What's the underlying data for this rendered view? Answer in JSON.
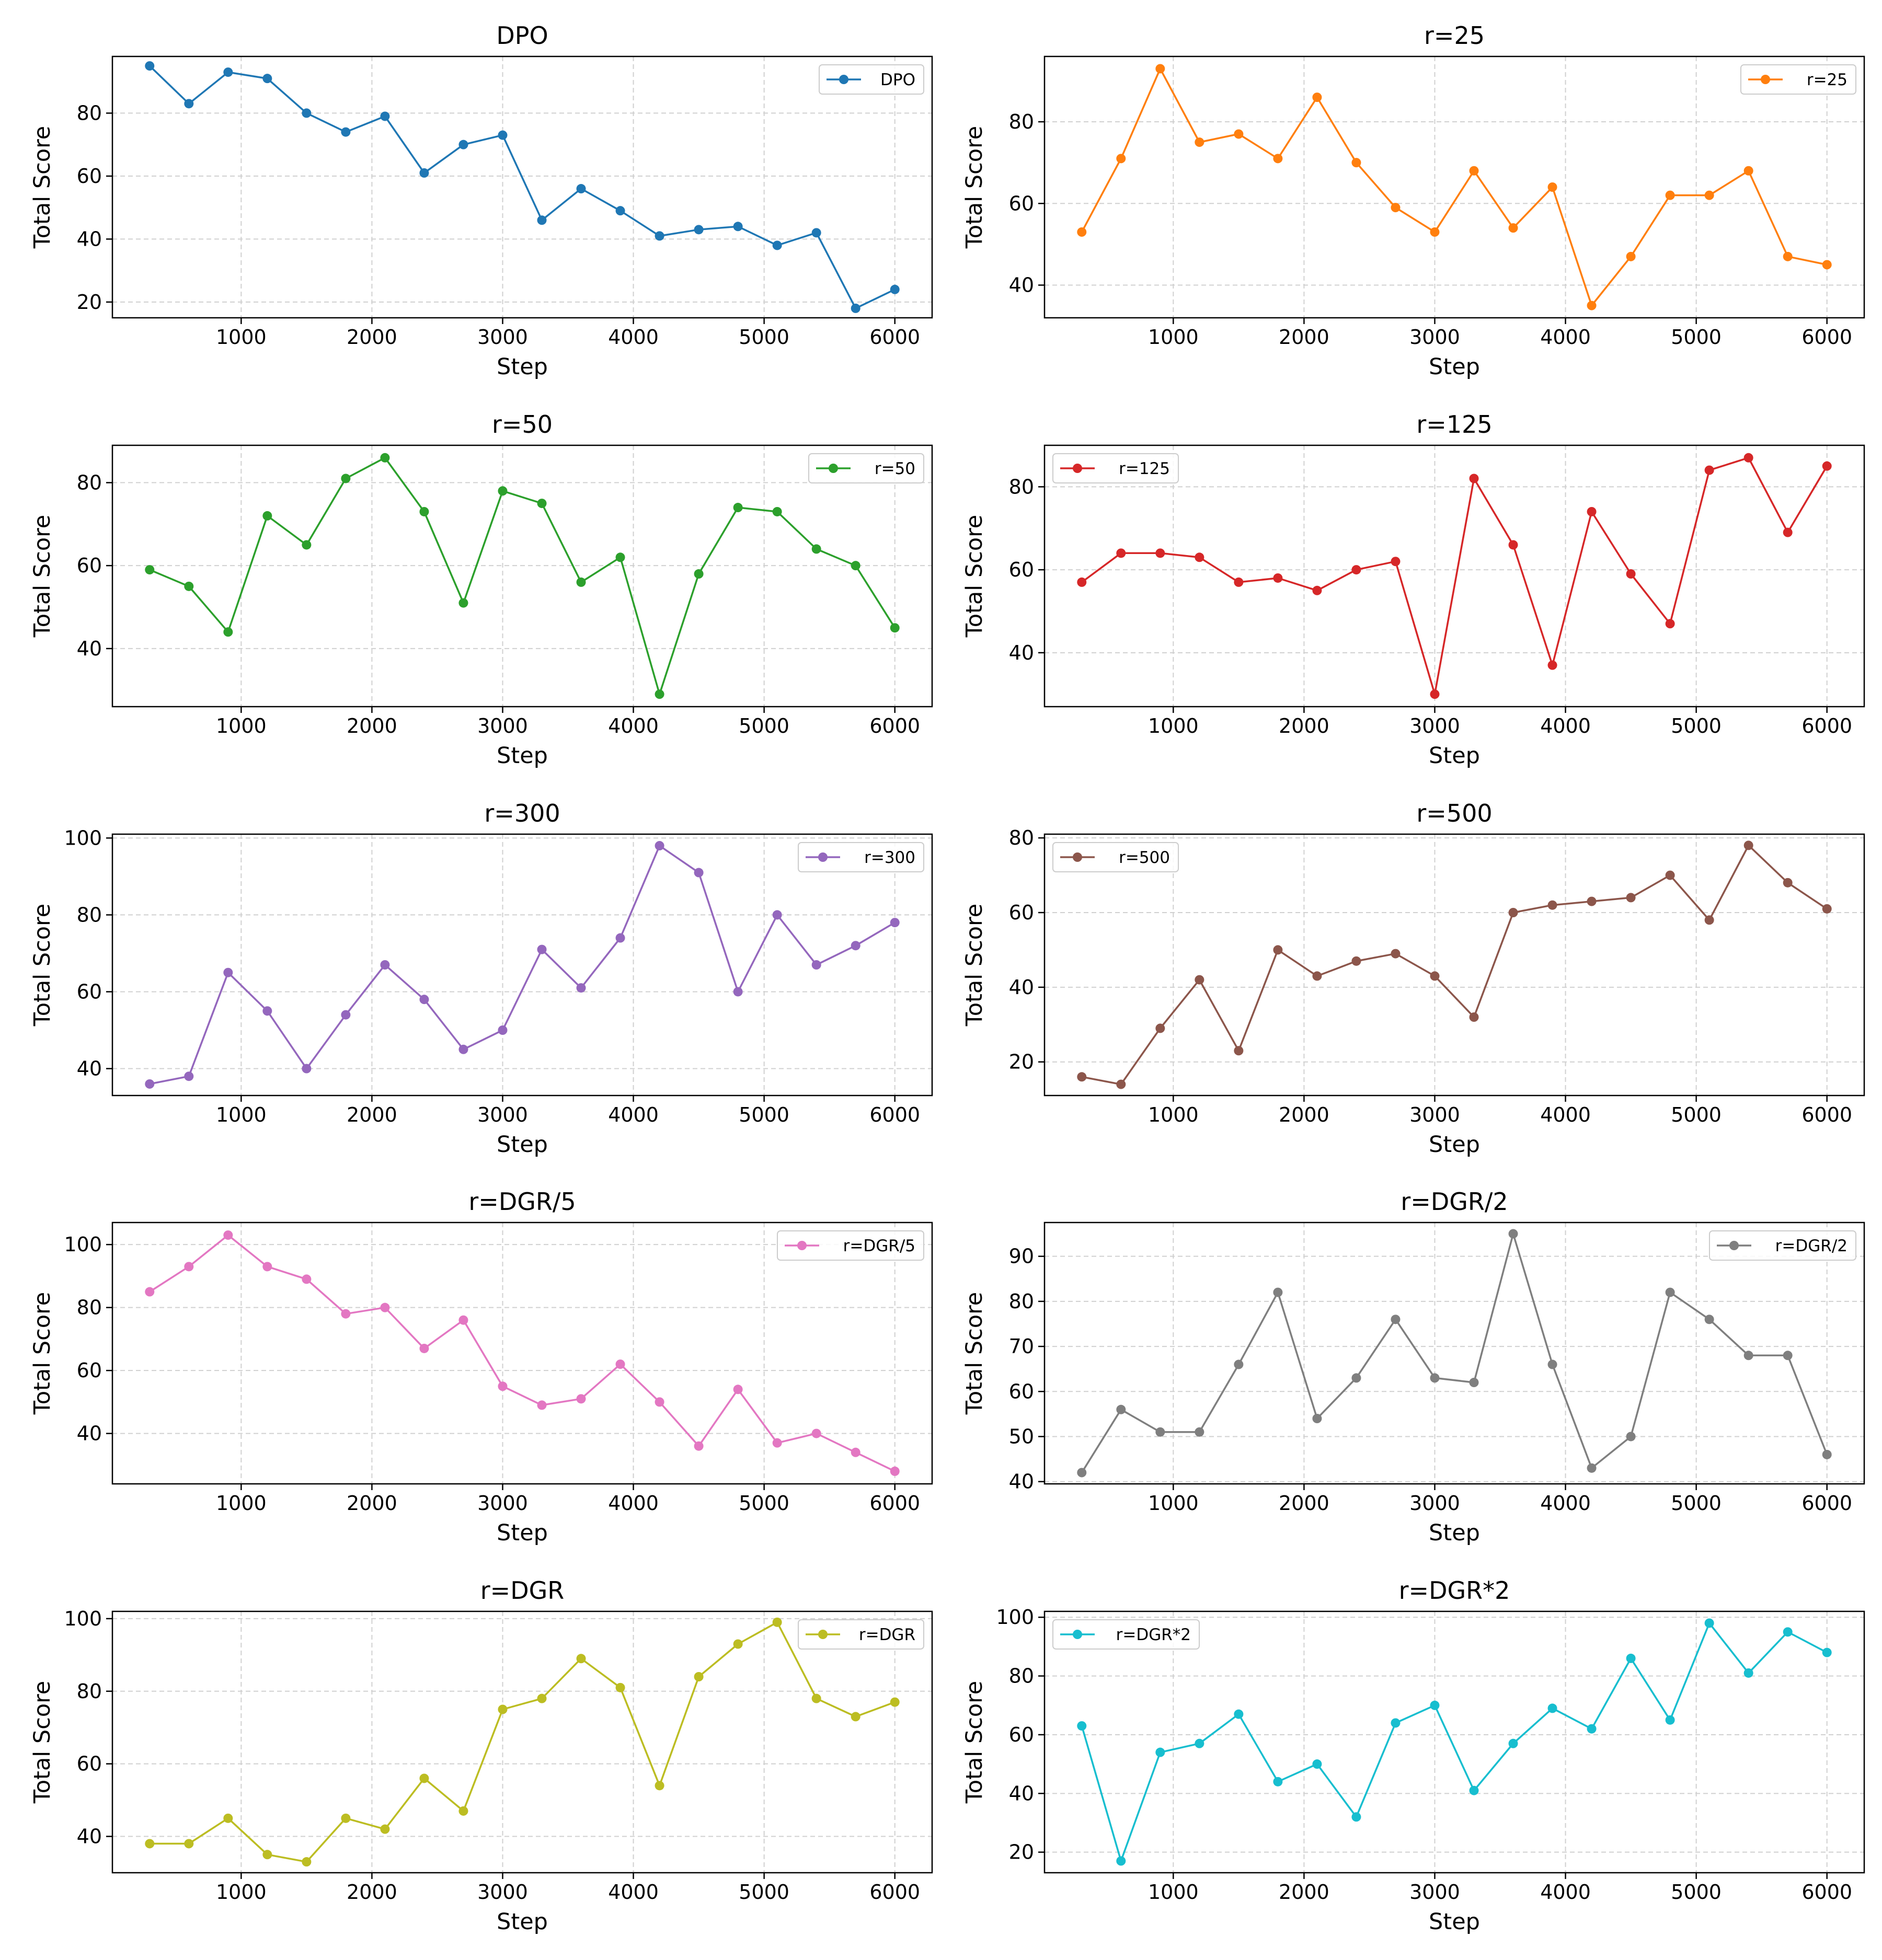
{
  "chart_data": [
    {
      "type": "line",
      "title": "DPO",
      "xlabel": "Step",
      "ylabel": "Total Score",
      "color": "#1f77b4",
      "legend": "DPO",
      "legend_pos": "top-right",
      "x": [
        300,
        600,
        900,
        1200,
        1500,
        1800,
        2100,
        2400,
        2700,
        3000,
        3300,
        3600,
        3900,
        4200,
        4500,
        4800,
        5100,
        5400,
        5700,
        6000
      ],
      "values": [
        95,
        83,
        93,
        91,
        80,
        74,
        79,
        61,
        70,
        73,
        46,
        56,
        49,
        41,
        43,
        44,
        38,
        42,
        18,
        24
      ],
      "ylim": [
        15,
        98
      ],
      "yticks": [
        20,
        40,
        60,
        80
      ],
      "xticks": [
        1000,
        2000,
        3000,
        4000,
        5000,
        6000
      ]
    },
    {
      "type": "line",
      "title": "r=25",
      "xlabel": "Step",
      "ylabel": "Total Score",
      "color": "#ff7f0e",
      "legend": "r=25",
      "legend_pos": "top-right",
      "x": [
        300,
        600,
        900,
        1200,
        1500,
        1800,
        2100,
        2400,
        2700,
        3000,
        3300,
        3600,
        3900,
        4200,
        4500,
        4800,
        5100,
        5400,
        5700,
        6000
      ],
      "values": [
        53,
        71,
        93,
        75,
        77,
        71,
        86,
        70,
        59,
        53,
        68,
        54,
        64,
        35,
        47,
        62,
        62,
        68,
        47,
        45
      ],
      "ylim": [
        32,
        96
      ],
      "yticks": [
        40,
        60,
        80
      ],
      "xticks": [
        1000,
        2000,
        3000,
        4000,
        5000,
        6000
      ]
    },
    {
      "type": "line",
      "title": "r=50",
      "xlabel": "Step",
      "ylabel": "Total Score",
      "color": "#2ca02c",
      "legend": "r=50",
      "legend_pos": "top-right",
      "x": [
        300,
        600,
        900,
        1200,
        1500,
        1800,
        2100,
        2400,
        2700,
        3000,
        3300,
        3600,
        3900,
        4200,
        4500,
        4800,
        5100,
        5400,
        5700,
        6000
      ],
      "values": [
        59,
        55,
        44,
        72,
        65,
        81,
        86,
        73,
        51,
        78,
        75,
        56,
        62,
        29,
        58,
        74,
        73,
        64,
        60,
        45
      ],
      "ylim": [
        26,
        89
      ],
      "yticks": [
        40,
        60,
        80
      ],
      "xticks": [
        1000,
        2000,
        3000,
        4000,
        5000,
        6000
      ]
    },
    {
      "type": "line",
      "title": "r=125",
      "xlabel": "Step",
      "ylabel": "Total Score",
      "color": "#d62728",
      "legend": "r=125",
      "legend_pos": "top-left",
      "x": [
        300,
        600,
        900,
        1200,
        1500,
        1800,
        2100,
        2400,
        2700,
        3000,
        3300,
        3600,
        3900,
        4200,
        4500,
        4800,
        5100,
        5400,
        5700,
        6000
      ],
      "values": [
        57,
        64,
        64,
        63,
        57,
        58,
        55,
        60,
        62,
        30,
        82,
        66,
        37,
        74,
        59,
        47,
        84,
        87,
        69,
        85
      ],
      "ylim": [
        27,
        90
      ],
      "yticks": [
        40,
        60,
        80
      ],
      "xticks": [
        1000,
        2000,
        3000,
        4000,
        5000,
        6000
      ]
    },
    {
      "type": "line",
      "title": "r=300",
      "xlabel": "Step",
      "ylabel": "Total Score",
      "color": "#9467bd",
      "legend": "r=300",
      "legend_pos": "top-right",
      "x": [
        300,
        600,
        900,
        1200,
        1500,
        1800,
        2100,
        2400,
        2700,
        3000,
        3300,
        3600,
        3900,
        4200,
        4500,
        4800,
        5100,
        5400,
        5700,
        6000
      ],
      "values": [
        36,
        38,
        65,
        55,
        40,
        54,
        67,
        58,
        45,
        50,
        71,
        61,
        74,
        98,
        91,
        60,
        80,
        67,
        72,
        78
      ],
      "ylim": [
        33,
        101
      ],
      "yticks": [
        40,
        60,
        80,
        100
      ],
      "xticks": [
        1000,
        2000,
        3000,
        4000,
        5000,
        6000
      ]
    },
    {
      "type": "line",
      "title": "r=500",
      "xlabel": "Step",
      "ylabel": "Total Score",
      "color": "#8c564b",
      "legend": "r=500",
      "legend_pos": "top-left",
      "x": [
        300,
        600,
        900,
        1200,
        1500,
        1800,
        2100,
        2400,
        2700,
        3000,
        3300,
        3600,
        3900,
        4200,
        4500,
        4800,
        5100,
        5400,
        5700,
        6000
      ],
      "values": [
        16,
        14,
        29,
        42,
        23,
        50,
        43,
        47,
        49,
        43,
        32,
        60,
        62,
        63,
        64,
        70,
        58,
        78,
        68,
        61
      ],
      "ylim": [
        11,
        81
      ],
      "yticks": [
        20,
        40,
        60,
        80
      ],
      "xticks": [
        1000,
        2000,
        3000,
        4000,
        5000,
        6000
      ]
    },
    {
      "type": "line",
      "title": "r=DGR/5",
      "xlabel": "Step",
      "ylabel": "Total Score",
      "color": "#e377c2",
      "legend": "r=DGR/5",
      "legend_pos": "top-right",
      "x": [
        300,
        600,
        900,
        1200,
        1500,
        1800,
        2100,
        2400,
        2700,
        3000,
        3300,
        3600,
        3900,
        4200,
        4500,
        4800,
        5100,
        5400,
        5700,
        6000
      ],
      "values": [
        85,
        93,
        103,
        93,
        89,
        78,
        80,
        67,
        76,
        55,
        49,
        51,
        62,
        50,
        36,
        54,
        37,
        40,
        34,
        28
      ],
      "ylim": [
        24,
        107
      ],
      "yticks": [
        40,
        60,
        80,
        100
      ],
      "xticks": [
        1000,
        2000,
        3000,
        4000,
        5000,
        6000
      ]
    },
    {
      "type": "line",
      "title": "r=DGR/2",
      "xlabel": "Step",
      "ylabel": "Total Score",
      "color": "#7f7f7f",
      "legend": "r=DGR/2",
      "legend_pos": "top-right",
      "x": [
        300,
        600,
        900,
        1200,
        1500,
        1800,
        2100,
        2400,
        2700,
        3000,
        3300,
        3600,
        3900,
        4200,
        4500,
        4800,
        5100,
        5400,
        5700,
        6000
      ],
      "values": [
        42,
        56,
        51,
        51,
        66,
        82,
        54,
        63,
        76,
        63,
        62,
        95,
        66,
        43,
        50,
        82,
        76,
        68,
        68,
        46
      ],
      "ylim": [
        39.5,
        97.5
      ],
      "yticks": [
        40,
        50,
        60,
        70,
        80,
        90
      ],
      "xticks": [
        1000,
        2000,
        3000,
        4000,
        5000,
        6000
      ]
    },
    {
      "type": "line",
      "title": "r=DGR",
      "xlabel": "Step",
      "ylabel": "Total Score",
      "color": "#bcbd22",
      "legend": "r=DGR",
      "legend_pos": "top-right",
      "x": [
        300,
        600,
        900,
        1200,
        1500,
        1800,
        2100,
        2400,
        2700,
        3000,
        3300,
        3600,
        3900,
        4200,
        4500,
        4800,
        5100,
        5400,
        5700,
        6000
      ],
      "values": [
        38,
        38,
        45,
        35,
        33,
        45,
        42,
        56,
        47,
        75,
        78,
        89,
        81,
        54,
        84,
        93,
        99,
        78,
        73,
        77
      ],
      "ylim": [
        30,
        102
      ],
      "yticks": [
        40,
        60,
        80,
        100
      ],
      "xticks": [
        1000,
        2000,
        3000,
        4000,
        5000,
        6000
      ]
    },
    {
      "type": "line",
      "title": "r=DGR*2",
      "xlabel": "Step",
      "ylabel": "Total Score",
      "color": "#17becf",
      "legend": "r=DGR*2",
      "legend_pos": "top-left",
      "x": [
        300,
        600,
        900,
        1200,
        1500,
        1800,
        2100,
        2400,
        2700,
        3000,
        3300,
        3600,
        3900,
        4200,
        4500,
        4800,
        5100,
        5400,
        5700,
        6000
      ],
      "values": [
        63,
        17,
        54,
        57,
        67,
        44,
        50,
        32,
        64,
        70,
        41,
        57,
        69,
        62,
        86,
        65,
        98,
        81,
        95,
        88
      ],
      "ylim": [
        13,
        102
      ],
      "yticks": [
        20,
        40,
        60,
        80,
        100
      ],
      "xticks": [
        1000,
        2000,
        3000,
        4000,
        5000,
        6000
      ]
    }
  ]
}
